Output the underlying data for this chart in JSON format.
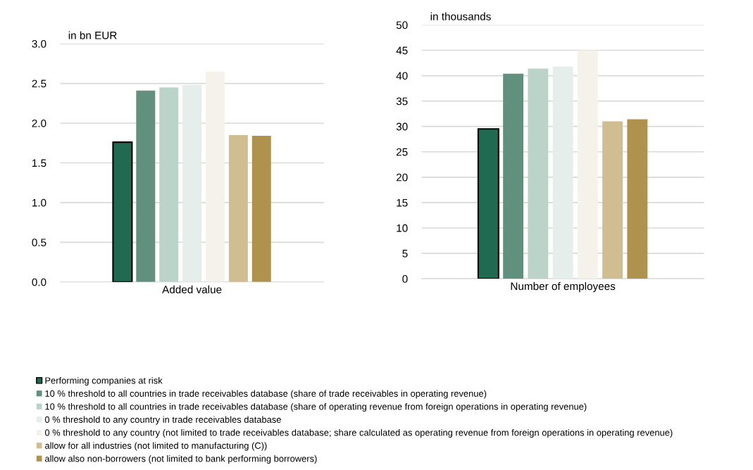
{
  "chart_data": [
    {
      "type": "bar",
      "ylabel": "in bn EUR",
      "categories": [
        "Added value"
      ],
      "ylim": [
        0,
        3.0
      ],
      "yticks": [
        {
          "value": 0,
          "label": "0.0"
        },
        {
          "value": 0.5,
          "label": "0.5"
        },
        {
          "value": 1,
          "label": "1.0"
        },
        {
          "value": 1.5,
          "label": "1.5"
        },
        {
          "value": 2,
          "label": "2.0"
        },
        {
          "value": 2.5,
          "label": "2.5"
        },
        {
          "value": 3,
          "label": "3.0"
        }
      ],
      "grid": "y",
      "legend": "bottom",
      "series": [
        {
          "name": "Performing companies at risk",
          "color": "#1f6a50",
          "values": [
            1.76
          ]
        },
        {
          "name": "10 % threshold to all countries in trade receivables database (share of trade receivables in operating revenue)",
          "color": "#62907f",
          "values": [
            2.41
          ]
        },
        {
          "name": "10 % threshold to all countries in trade receivables database (share of operating revenue from foreign operations in operating revenue)",
          "color": "#bcd3ca",
          "values": [
            2.45
          ]
        },
        {
          "name": "0 % threshold to any country in trade receivables database",
          "color": "#e5eeeb",
          "values": [
            2.48
          ]
        },
        {
          "name": "0 % threshold to any country (not limited to trade receivables database; share calculated as operating revenue from foreign operations in operating revenue)",
          "color": "#f5f2eb",
          "values": [
            2.65
          ]
        },
        {
          "name": "allow for all industries (not limited to manufacturing (C))",
          "color": "#d0be91",
          "values": [
            1.85
          ]
        },
        {
          "name": "allow also non-borrowers (not limited to bank performing borrowers)",
          "color": "#b0924f",
          "values": [
            1.84
          ]
        }
      ]
    },
    {
      "type": "bar",
      "ylabel": "in thousands",
      "categories": [
        "Number of employees"
      ],
      "ylim": [
        0,
        50
      ],
      "yticks": [
        0,
        5,
        10,
        15,
        20,
        25,
        30,
        35,
        40,
        45,
        50
      ],
      "grid": "y",
      "series": [
        {
          "color": "#1f6a50",
          "values": [
            29.5
          ]
        },
        {
          "color": "#62907f",
          "values": [
            40.4
          ]
        },
        {
          "color": "#bcd3ca",
          "values": [
            41.4
          ]
        },
        {
          "color": "#e5eeeb",
          "values": [
            41.8
          ]
        },
        {
          "color": "#f5f2eb",
          "values": [
            45.0
          ]
        },
        {
          "color": "#d0be91",
          "values": [
            31.0
          ]
        },
        {
          "color": "#b0924f",
          "values": [
            31.4
          ]
        }
      ]
    }
  ]
}
